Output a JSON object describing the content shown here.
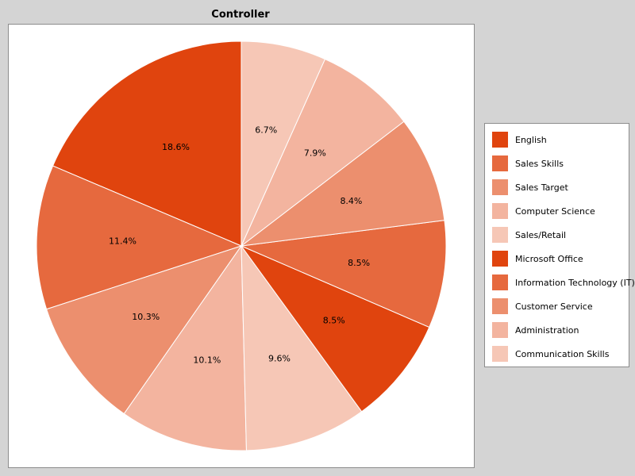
{
  "chart_data": {
    "type": "pie",
    "title": "Controller",
    "categories": [
      "English",
      "Sales Skills",
      "Sales Target",
      "Computer Science",
      "Sales/Retail",
      "Microsoft Office",
      "Information Technology (IT)",
      "Customer Service",
      "Administration",
      "Communication Skills"
    ],
    "values": [
      18.6,
      11.4,
      10.3,
      10.1,
      9.6,
      8.5,
      8.5,
      8.4,
      7.9,
      6.7
    ],
    "value_labels": [
      "18.6%",
      "11.4%",
      "10.3%",
      "10.1%",
      "9.6%",
      "8.5%",
      "8.5%",
      "8.4%",
      "7.9%",
      "6.7%"
    ],
    "colors": [
      "#e0440e",
      "#e6693e",
      "#ec8f6e",
      "#f3b49f",
      "#f6c7b6",
      "#e0440e",
      "#e6693e",
      "#ec8f6e",
      "#f3b49f",
      "#f6c7b6"
    ],
    "start_angle": "12 o'clock",
    "direction": "counterclockwise",
    "legend_position": "right"
  }
}
